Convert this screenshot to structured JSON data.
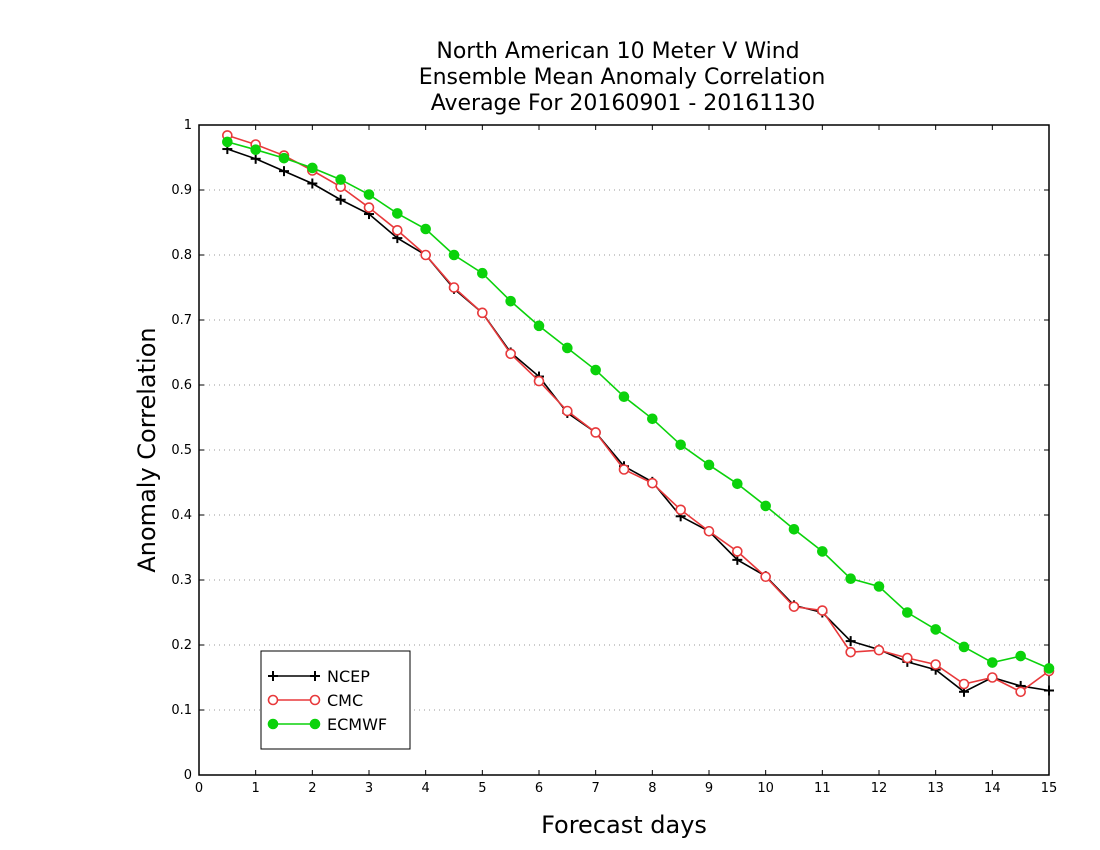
{
  "chart_data": {
    "type": "line",
    "title": [
      "North American 10 Meter V Wind",
      "Ensemble Mean Anomaly Correlation",
      "Average For 20160901 - 20161130"
    ],
    "xlabel": "Forecast days",
    "ylabel": "Anomaly Correlation",
    "xlim": [
      0,
      15
    ],
    "ylim": [
      0,
      1
    ],
    "xticks": [
      0,
      1,
      2,
      3,
      4,
      5,
      6,
      7,
      8,
      9,
      10,
      11,
      12,
      13,
      14,
      15
    ],
    "yticks": [
      0,
      0.1,
      0.2,
      0.3,
      0.4,
      0.5,
      0.6,
      0.7,
      0.8,
      0.9,
      1
    ],
    "ytick_labels": [
      "0",
      "0.1",
      "0.2",
      "0.3",
      "0.4",
      "0.5",
      "0.6",
      "0.7",
      "0.8",
      "0.9",
      "1"
    ],
    "grid": "horizontal dotted",
    "legend_position": "bottom-left",
    "x": [
      0.5,
      1,
      1.5,
      2,
      2.5,
      3,
      3.5,
      4,
      4.5,
      5,
      5.5,
      6,
      6.5,
      7,
      7.5,
      8,
      8.5,
      9,
      9.5,
      10,
      10.5,
      11,
      11.5,
      12,
      12.5,
      13,
      13.5,
      14,
      14.5,
      15
    ],
    "series": [
      {
        "name": "NCEP",
        "color": "#000000",
        "marker": "plus",
        "values": [
          0.963,
          0.948,
          0.929,
          0.91,
          0.885,
          0.863,
          0.826,
          0.8,
          0.748,
          0.711,
          0.65,
          0.613,
          0.557,
          0.527,
          0.475,
          0.451,
          0.398,
          0.375,
          0.331,
          0.306,
          0.261,
          0.25,
          0.206,
          0.193,
          0.174,
          0.162,
          0.128,
          0.15,
          0.137,
          0.13
        ]
      },
      {
        "name": "CMC",
        "color": "#e8393b",
        "marker": "open-circle",
        "values": [
          0.984,
          0.97,
          0.953,
          0.93,
          0.905,
          0.873,
          0.838,
          0.8,
          0.75,
          0.711,
          0.648,
          0.606,
          0.56,
          0.527,
          0.47,
          0.449,
          0.408,
          0.375,
          0.344,
          0.305,
          0.259,
          0.253,
          0.189,
          0.192,
          0.18,
          0.17,
          0.14,
          0.15,
          0.128,
          0.16
        ]
      },
      {
        "name": "ECMWF",
        "color": "#0bd20b",
        "marker": "filled-circle",
        "values": [
          0.974,
          0.962,
          0.949,
          0.934,
          0.916,
          0.893,
          0.864,
          0.84,
          0.8,
          0.772,
          0.729,
          0.691,
          0.657,
          0.623,
          0.582,
          0.548,
          0.508,
          0.477,
          0.448,
          0.414,
          0.378,
          0.344,
          0.302,
          0.29,
          0.25,
          0.224,
          0.197,
          0.173,
          0.183,
          0.164
        ]
      }
    ]
  }
}
